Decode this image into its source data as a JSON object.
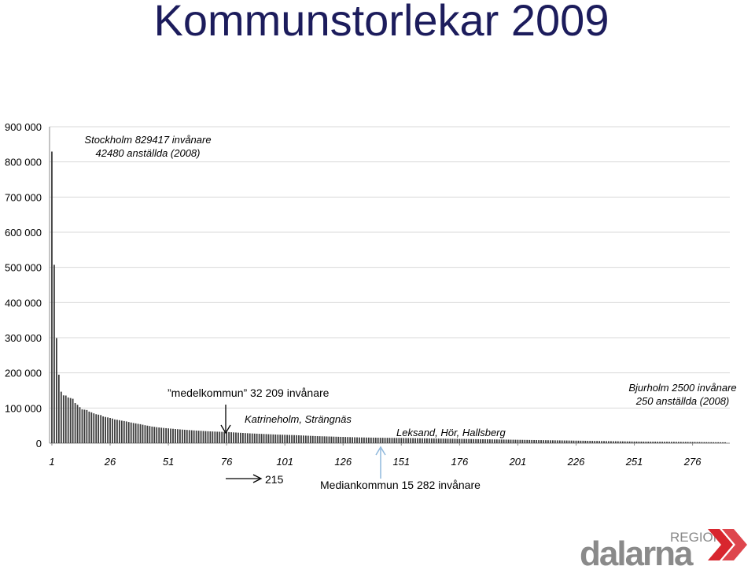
{
  "chart_data": {
    "type": "bar",
    "title": "Kommunstorlekar 2009",
    "x": [
      1,
      2,
      3,
      4,
      5,
      6,
      7,
      8,
      9,
      10,
      11,
      12,
      13,
      14,
      15,
      16,
      17,
      18,
      19,
      20,
      21,
      22,
      23,
      24,
      25,
      26,
      27,
      28,
      29,
      30,
      31,
      32,
      33,
      34,
      35,
      36,
      37,
      38,
      39,
      40,
      41,
      42,
      43,
      44,
      45,
      46,
      47,
      48,
      49,
      50,
      51,
      52,
      53,
      54,
      55,
      56,
      57,
      58,
      59,
      60,
      61,
      62,
      63,
      64,
      65,
      66,
      67,
      68,
      69,
      70,
      71,
      72,
      73,
      74,
      75,
      76,
      77,
      78,
      79,
      80,
      81,
      82,
      83,
      84,
      85,
      86,
      87,
      88,
      89,
      90,
      91,
      92,
      93,
      94,
      95,
      96,
      97,
      98,
      99,
      100,
      101,
      102,
      103,
      104,
      105,
      106,
      107,
      108,
      109,
      110,
      111,
      112,
      113,
      114,
      115,
      116,
      117,
      118,
      119,
      120,
      121,
      122,
      123,
      124,
      125,
      126,
      127,
      128,
      129,
      130,
      131,
      132,
      133,
      134,
      135,
      136,
      137,
      138,
      139,
      140,
      141,
      142,
      143,
      144,
      145,
      146,
      147,
      148,
      149,
      150,
      151,
      152,
      153,
      154,
      155,
      156,
      157,
      158,
      159,
      160,
      161,
      162,
      163,
      164,
      165,
      166,
      167,
      168,
      169,
      170,
      171,
      172,
      173,
      174,
      175,
      176,
      177,
      178,
      179,
      180,
      181,
      182,
      183,
      184,
      185,
      186,
      187,
      188,
      189,
      190,
      191,
      192,
      193,
      194,
      195,
      196,
      197,
      198,
      199,
      200,
      201,
      202,
      203,
      204,
      205,
      206,
      207,
      208,
      209,
      210,
      211,
      212,
      213,
      214,
      215,
      216,
      217,
      218,
      219,
      220,
      221,
      222,
      223,
      224,
      225,
      226,
      227,
      228,
      229,
      230,
      231,
      232,
      233,
      234,
      235,
      236,
      237,
      238,
      239,
      240,
      241,
      242,
      243,
      244,
      245,
      246,
      247,
      248,
      249,
      250,
      251,
      252,
      253,
      254,
      255,
      256,
      257,
      258,
      259,
      260,
      261,
      262,
      263,
      264,
      265,
      266,
      267,
      268,
      269,
      270,
      271,
      272,
      273,
      274,
      275,
      276,
      277,
      278,
      279,
      280,
      281,
      282,
      283,
      284,
      285,
      286,
      287,
      288,
      289,
      290
    ],
    "values": [
      829417,
      507330,
      298963,
      194751,
      146416,
      136031,
      135460,
      130050,
      128359,
      126331,
      114075,
      109147,
      102458,
      96144,
      95311,
      94352,
      89845,
      87675,
      84813,
      82267,
      81108,
      79853,
      76120,
      74570,
      73287,
      71600,
      70022,
      67500,
      66700,
      65400,
      64100,
      63000,
      61800,
      60100,
      58800,
      57400,
      56300,
      55100,
      54000,
      52500,
      51000,
      49800,
      48700,
      47300,
      46500,
      45500,
      44700,
      44000,
      43300,
      42700,
      42100,
      41500,
      40900,
      40300,
      39800,
      39200,
      38700,
      38200,
      37700,
      37200,
      36800,
      36300,
      35900,
      35500,
      35100,
      34700,
      34300,
      33900,
      33600,
      33300,
      33000,
      32700,
      32500,
      32300,
      32100,
      31900,
      31500,
      31100,
      30700,
      30300,
      29900,
      29500,
      29100,
      28700,
      28300,
      27900,
      27600,
      27300,
      27000,
      26700,
      26400,
      26100,
      25800,
      25500,
      25200,
      24900,
      24600,
      24400,
      24200,
      24000,
      23800,
      23600,
      23400,
      23200,
      23000,
      22700,
      22400,
      22100,
      21800,
      21500,
      21200,
      20900,
      20600,
      20300,
      20000,
      19800,
      19600,
      19400,
      19200,
      19000,
      18800,
      18600,
      18400,
      18200,
      18000,
      17800,
      17600,
      17400,
      17200,
      17000,
      16800,
      16600,
      16400,
      16300,
      16200,
      16100,
      16000,
      15900,
      15800,
      15700,
      15600,
      15500,
      15400,
      15300,
      15282,
      15200,
      15100,
      15000,
      14900,
      14800,
      14700,
      14600,
      14500,
      14400,
      14300,
      14200,
      14100,
      14000,
      13900,
      13800,
      13700,
      13600,
      13500,
      13400,
      13300,
      13200,
      13100,
      13000,
      12900,
      12800,
      12700,
      12600,
      12500,
      12400,
      12300,
      12200,
      12100,
      12000,
      11900,
      11800,
      11700,
      11600,
      11500,
      11400,
      11300,
      11200,
      11100,
      11000,
      10900,
      10800,
      10700,
      10600,
      10500,
      10400,
      10300,
      10200,
      10100,
      10000,
      9900,
      9800,
      9700,
      9600,
      9500,
      9400,
      9300,
      9200,
      9100,
      9000,
      8900,
      8800,
      8700,
      8600,
      8500,
      8400,
      8300,
      8200,
      8100,
      8000,
      7900,
      7800,
      7700,
      7600,
      7500,
      7400,
      7300,
      7200,
      7100,
      7000,
      6900,
      6800,
      6700,
      6600,
      6500,
      6400,
      6300,
      6200,
      6100,
      6000,
      5900,
      5800,
      5700,
      5600,
      5500,
      5400,
      5300,
      5200,
      5100,
      5000,
      4900,
      4800,
      4700,
      4650,
      4600,
      4550,
      4500,
      4450,
      4400,
      4350,
      4300,
      4250,
      4200,
      4150,
      4100,
      4050,
      4000,
      3950,
      3900,
      3850,
      3800,
      3750,
      3700,
      3650,
      3600,
      3550,
      3500,
      3450,
      3400,
      3300,
      3200,
      3100,
      3000,
      2950,
      2900,
      2850,
      2800,
      2750,
      2700,
      2600,
      2550,
      2500
    ],
    "color": "#3a3a3a",
    "xlim": [
      0,
      292
    ],
    "xticks": [
      1,
      26,
      51,
      76,
      101,
      126,
      151,
      176,
      201,
      226,
      251,
      276
    ],
    "ylim": [
      0,
      900000
    ],
    "yticks": [
      0,
      {
        "value": 100000,
        "label": "100 000"
      },
      {
        "value": 200000,
        "label": "200 000"
      },
      {
        "value": 300000,
        "label": "300 000"
      },
      {
        "value": 400000,
        "label": "400 000"
      },
      {
        "value": 500000,
        "label": "500 000"
      },
      {
        "value": 600000,
        "label": "600 000"
      },
      {
        "value": 700000,
        "label": "700 000"
      },
      {
        "value": 800000,
        "label": "800 000"
      },
      {
        "value": 900000,
        "label": "900 000"
      }
    ],
    "grid": true,
    "annotations": [
      "Stockholm 829417 invånare",
      "42480 anställda (2008)",
      "”medelkommun” 32 209 invånare",
      "Katrineholm, Strängnäs",
      "Leksand, Hör, Hallsberg",
      "Bjurholm 2500 invånare",
      "250 anställda (2008)",
      "215",
      "Mediankommun 15 282 invånare"
    ]
  },
  "logo": {
    "top": "REGION",
    "name": "dalarna"
  }
}
